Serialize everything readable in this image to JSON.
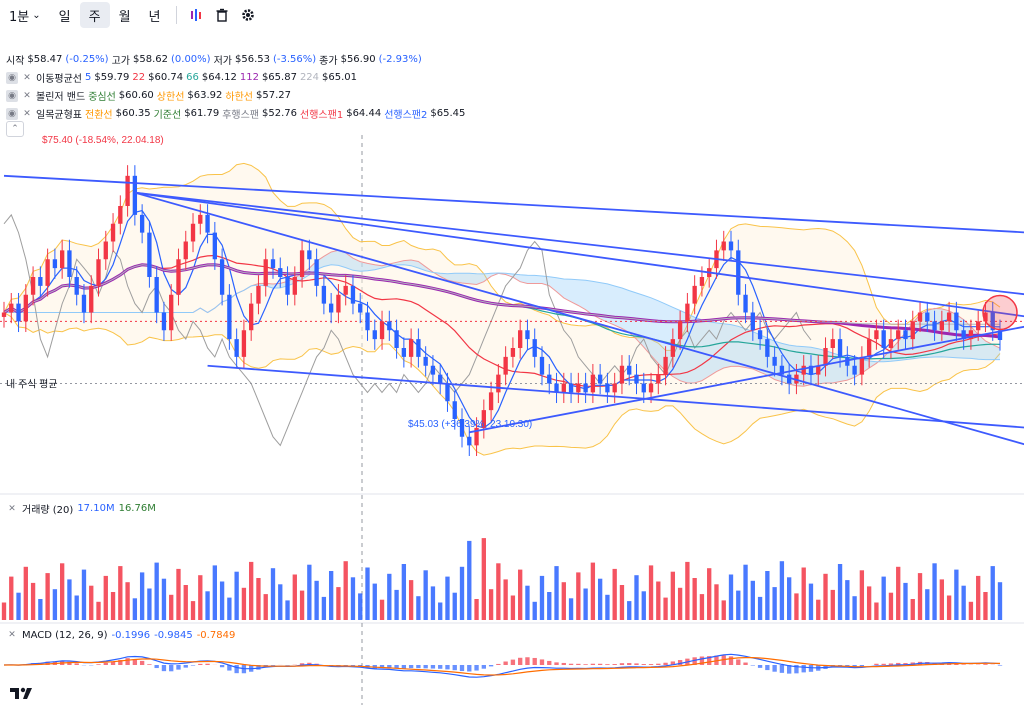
{
  "toolbar": {
    "interval": "1분",
    "periods": [
      "일",
      "주",
      "월",
      "년"
    ],
    "active_period": "주"
  },
  "ohlc_legend": {
    "open_label": "시작",
    "open": "$58.47",
    "open_chg": "(-0.25%)",
    "high_label": "고가",
    "high": "$58.62",
    "high_chg": "(0.00%)",
    "low_label": "저가",
    "low": "$56.53",
    "low_chg": "(-3.56%)",
    "close_label": "종가",
    "close": "$56.90",
    "close_chg": "(-2.93%)"
  },
  "ma_legend": {
    "name": "이동평균선",
    "p5": "5",
    "v5": "$59.79",
    "p22": "22",
    "v22": "$60.74",
    "p66": "66",
    "v66": "$64.12",
    "p112": "112",
    "v112": "$65.87",
    "p224": "224",
    "v224": "$65.01"
  },
  "bb_legend": {
    "name": "볼린저 밴드",
    "mid_label": "중심선",
    "mid": "$60.60",
    "up_label": "상한선",
    "up": "$63.92",
    "low_label": "하한선",
    "low": "$57.27"
  },
  "ichi_legend": {
    "name": "일목균형표",
    "conv_label": "전환선",
    "conv": "$60.35",
    "base_label": "기준선",
    "base": "$61.79",
    "lag_label": "후행스팬",
    "lag": "$52.76",
    "spanA_label": "선행스팬1",
    "spanA": "$64.44",
    "spanB_label": "선행스팬2",
    "spanB": "$65.45"
  },
  "annotations": {
    "high_label": "$75.40 (-18.54%, 22.04.18)",
    "low_label": "$45.03 (+36.39%, 23.10.30)",
    "avg_label": "내 주식 평균"
  },
  "volume_legend": {
    "name": "거래량 (20)",
    "v1": "17.10M",
    "v2": "16.76M"
  },
  "macd_legend": {
    "name": "MACD (12, 26, 9)",
    "v1": "-0.1996",
    "v2": "-0.9845",
    "v3": "-0.7849"
  },
  "colors": {
    "up": "#f23645",
    "down": "#2962ff",
    "trend": "#3d5afe",
    "ma112": "#9c27b0",
    "bb": "#f9c349"
  },
  "chart_data": {
    "type": "candlestick",
    "x_start": "2021-12",
    "interval": "weekly",
    "x_end": "2024-01",
    "ylim": [
      40,
      80
    ],
    "series": [
      {
        "name": "price",
        "close": [
          60,
          61,
          59,
          62,
          64,
          63,
          66,
          65,
          67,
          64,
          62,
          60,
          63,
          66,
          68,
          70,
          72,
          75.4,
          71,
          69,
          64,
          60,
          58,
          62,
          66,
          68,
          70,
          71,
          69,
          66,
          62,
          57,
          55,
          58,
          61,
          63,
          66,
          65,
          64,
          62,
          64,
          67,
          66,
          63,
          61,
          60,
          62,
          63,
          61,
          60,
          58,
          57,
          59,
          58,
          56,
          55,
          57,
          55,
          54,
          53,
          52,
          50,
          48,
          46,
          45.03,
          47,
          49,
          51,
          53,
          55,
          56,
          58,
          57,
          55,
          53,
          52,
          51,
          52,
          51,
          52,
          51,
          53,
          52,
          51,
          52,
          54,
          53,
          52,
          51,
          52,
          53,
          55,
          57,
          59,
          61,
          63,
          64,
          65,
          67,
          68,
          67,
          62,
          60,
          58,
          57,
          55,
          54,
          53,
          52,
          53,
          54,
          53,
          54,
          56,
          57,
          55,
          54,
          53,
          55,
          57,
          58,
          56,
          57,
          58,
          57,
          59,
          60,
          59,
          58,
          59,
          60,
          58,
          57,
          58,
          59,
          60,
          58,
          56.9
        ]
      }
    ]
  }
}
